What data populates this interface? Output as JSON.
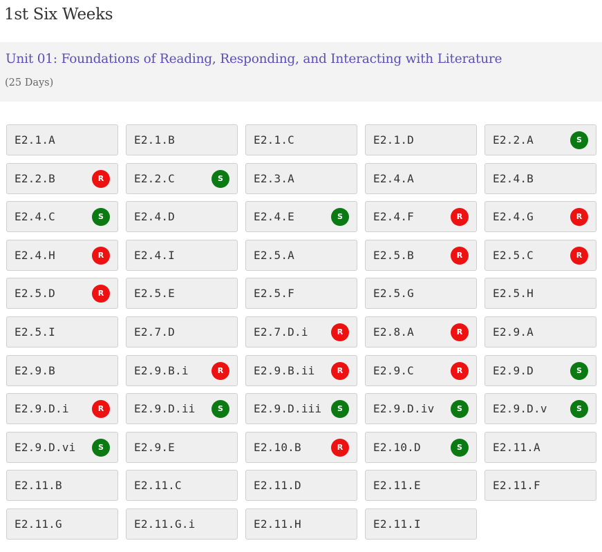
{
  "page": {
    "title": "1st Six Weeks"
  },
  "unit": {
    "title": "Unit 01: Foundations of Reading, Responding, and Interacting with Literature",
    "duration": "(25 Days)"
  },
  "colors": {
    "unit_title": "#5b4fb5",
    "badge_S": "#0c7a12",
    "badge_R": "#ee1111",
    "tile_bg": "#efefef",
    "header_bg": "#f3f3f3"
  },
  "standards": [
    {
      "code": "E2.1.A",
      "badge": ""
    },
    {
      "code": "E2.1.B",
      "badge": ""
    },
    {
      "code": "E2.1.C",
      "badge": ""
    },
    {
      "code": "E2.1.D",
      "badge": ""
    },
    {
      "code": "E2.2.A",
      "badge": "S"
    },
    {
      "code": "E2.2.B",
      "badge": "R"
    },
    {
      "code": "E2.2.C",
      "badge": "S"
    },
    {
      "code": "E2.3.A",
      "badge": ""
    },
    {
      "code": "E2.4.A",
      "badge": ""
    },
    {
      "code": "E2.4.B",
      "badge": ""
    },
    {
      "code": "E2.4.C",
      "badge": "S"
    },
    {
      "code": "E2.4.D",
      "badge": ""
    },
    {
      "code": "E2.4.E",
      "badge": "S"
    },
    {
      "code": "E2.4.F",
      "badge": "R"
    },
    {
      "code": "E2.4.G",
      "badge": "R"
    },
    {
      "code": "E2.4.H",
      "badge": "R"
    },
    {
      "code": "E2.4.I",
      "badge": ""
    },
    {
      "code": "E2.5.A",
      "badge": ""
    },
    {
      "code": "E2.5.B",
      "badge": "R"
    },
    {
      "code": "E2.5.C",
      "badge": "R"
    },
    {
      "code": "E2.5.D",
      "badge": "R"
    },
    {
      "code": "E2.5.E",
      "badge": ""
    },
    {
      "code": "E2.5.F",
      "badge": ""
    },
    {
      "code": "E2.5.G",
      "badge": ""
    },
    {
      "code": "E2.5.H",
      "badge": ""
    },
    {
      "code": "E2.5.I",
      "badge": ""
    },
    {
      "code": "E2.7.D",
      "badge": ""
    },
    {
      "code": "E2.7.D.i",
      "badge": "R"
    },
    {
      "code": "E2.8.A",
      "badge": "R"
    },
    {
      "code": "E2.9.A",
      "badge": ""
    },
    {
      "code": "E2.9.B",
      "badge": ""
    },
    {
      "code": "E2.9.B.i",
      "badge": "R"
    },
    {
      "code": "E2.9.B.ii",
      "badge": "R"
    },
    {
      "code": "E2.9.C",
      "badge": "R"
    },
    {
      "code": "E2.9.D",
      "badge": "S"
    },
    {
      "code": "E2.9.D.i",
      "badge": "R"
    },
    {
      "code": "E2.9.D.ii",
      "badge": "S"
    },
    {
      "code": "E2.9.D.iii",
      "badge": "S"
    },
    {
      "code": "E2.9.D.iv",
      "badge": "S"
    },
    {
      "code": "E2.9.D.v",
      "badge": "S"
    },
    {
      "code": "E2.9.D.vi",
      "badge": "S"
    },
    {
      "code": "E2.9.E",
      "badge": ""
    },
    {
      "code": "E2.10.B",
      "badge": "R"
    },
    {
      "code": "E2.10.D",
      "badge": "S"
    },
    {
      "code": "E2.11.A",
      "badge": ""
    },
    {
      "code": "E2.11.B",
      "badge": ""
    },
    {
      "code": "E2.11.C",
      "badge": ""
    },
    {
      "code": "E2.11.D",
      "badge": ""
    },
    {
      "code": "E2.11.E",
      "badge": ""
    },
    {
      "code": "E2.11.F",
      "badge": ""
    },
    {
      "code": "E2.11.G",
      "badge": ""
    },
    {
      "code": "E2.11.G.i",
      "badge": ""
    },
    {
      "code": "E2.11.H",
      "badge": ""
    },
    {
      "code": "E2.11.I",
      "badge": ""
    }
  ]
}
